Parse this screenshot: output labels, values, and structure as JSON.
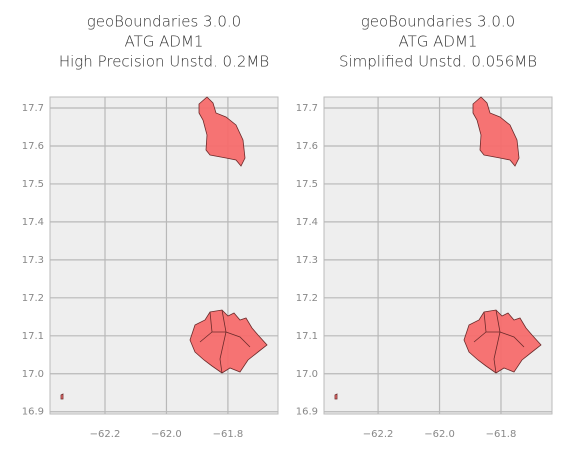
{
  "chart_data": [
    {
      "type": "map",
      "title": [
        "geoBoundaries 3.0.0",
        "ATG ADM1",
        "High Precision Unstd. 0.2MB"
      ],
      "xlim": [
        -62.379,
        -61.637
      ],
      "ylim": [
        16.894,
        17.729
      ],
      "xticks": [
        {
          "value": -62.2,
          "label": "−62.2"
        },
        {
          "value": -62.0,
          "label": "−62.0"
        },
        {
          "value": -61.8,
          "label": "−61.8"
        }
      ],
      "yticks": [
        {
          "value": 16.9,
          "label": "16.9"
        },
        {
          "value": 17.0,
          "label": "17.0"
        },
        {
          "value": 17.1,
          "label": "17.1"
        },
        {
          "value": 17.2,
          "label": "17.2"
        },
        {
          "value": 17.3,
          "label": "17.3"
        },
        {
          "value": 17.4,
          "label": "17.4"
        },
        {
          "value": 17.5,
          "label": "17.5"
        },
        {
          "value": 17.6,
          "label": "17.6"
        },
        {
          "value": 17.7,
          "label": "17.7"
        }
      ],
      "grid": true,
      "color": "#f56b6b"
    },
    {
      "type": "map",
      "title": [
        "geoBoundaries 3.0.0",
        "ATG ADM1",
        "Simplified Unstd. 0.056MB"
      ],
      "xlim": [
        -62.376,
        -61.634
      ],
      "ylim": [
        16.894,
        17.729
      ],
      "xticks": [
        {
          "value": -62.2,
          "label": "−62.2"
        },
        {
          "value": -62.0,
          "label": "−62.0"
        },
        {
          "value": -61.8,
          "label": "−61.8"
        }
      ],
      "yticks": [
        {
          "value": 16.9,
          "label": "16.9"
        },
        {
          "value": 17.0,
          "label": "17.0"
        },
        {
          "value": 17.1,
          "label": "17.1"
        },
        {
          "value": 17.2,
          "label": "17.2"
        },
        {
          "value": 17.3,
          "label": "17.3"
        },
        {
          "value": 17.4,
          "label": "17.4"
        },
        {
          "value": 17.5,
          "label": "17.5"
        },
        {
          "value": 17.6,
          "label": "17.6"
        },
        {
          "value": 17.7,
          "label": "17.7"
        }
      ],
      "grid": true,
      "color": "#f56b6b"
    }
  ]
}
